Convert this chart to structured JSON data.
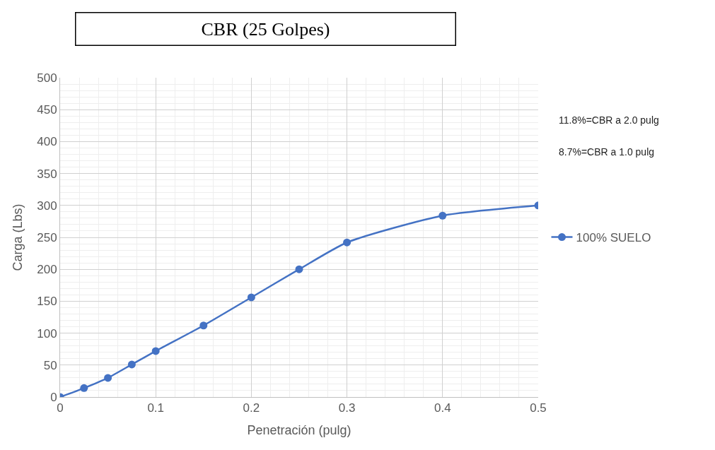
{
  "chart_data": {
    "type": "line",
    "title": "CBR (25 Golpes)",
    "xlabel": "Penetración (pulg)",
    "ylabel": "Carga (Lbs)",
    "x": [
      0,
      0.025,
      0.05,
      0.075,
      0.1,
      0.15,
      0.2,
      0.25,
      0.3,
      0.4,
      0.5
    ],
    "series": [
      {
        "name": "100% SUELO",
        "color": "#4472c4",
        "values": [
          0,
          14,
          30,
          51,
          72,
          112,
          156,
          200,
          242,
          284,
          300
        ]
      }
    ],
    "xlim": [
      0,
      0.5
    ],
    "xticks": [
      0,
      0.1,
      0.2,
      0.3,
      0.4,
      0.5
    ],
    "ylim": [
      0,
      500
    ],
    "yticks": [
      0,
      50,
      100,
      150,
      200,
      250,
      300,
      350,
      400,
      450,
      500
    ],
    "grid": true,
    "legend": "right",
    "marker": "circle",
    "line_style": "solid",
    "annotations": [
      "11.8%=CBR a 2.0 pulg",
      "8.7%=CBR a 1.0 pulg"
    ]
  }
}
